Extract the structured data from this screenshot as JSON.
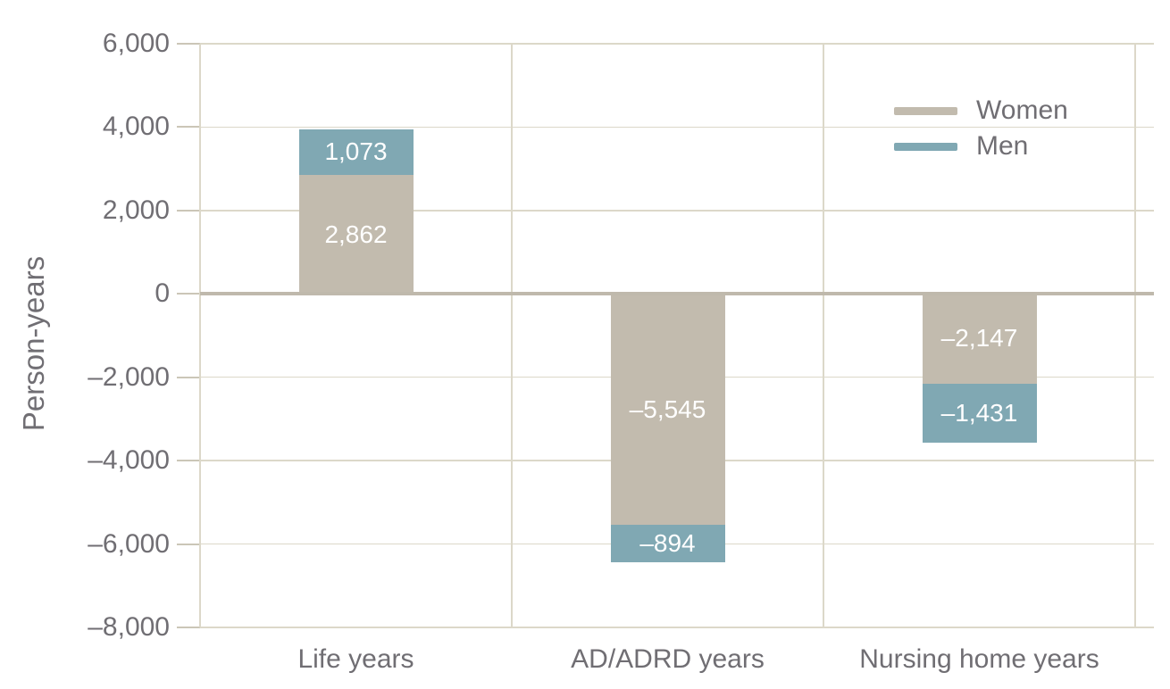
{
  "chart_data": {
    "type": "bar",
    "stacked": true,
    "title": "",
    "xlabel": "",
    "ylabel": "Person-years",
    "categories": [
      "Life years",
      "AD/ADRD years",
      "Nursing home years"
    ],
    "series": [
      {
        "name": "Women",
        "color": "#c2bbae",
        "values": [
          2862,
          -5545,
          -2147
        ],
        "value_labels": [
          "2,862",
          "–5,545",
          "–2,147"
        ]
      },
      {
        "name": "Men",
        "color": "#80a8b3",
        "values": [
          1073,
          -894,
          -1431
        ],
        "value_labels": [
          "1,073",
          "–894",
          "–1,431"
        ]
      }
    ],
    "ylim": [
      -8000,
      6000
    ],
    "yticks": [
      6000,
      4000,
      2000,
      0,
      -2000,
      -4000,
      -6000,
      -8000
    ],
    "ytick_labels": [
      "6,000",
      "4,000",
      "2,000",
      "0",
      "–2,000",
      "–4,000",
      "–6,000",
      "–8,000"
    ],
    "grid": true,
    "legend_position": "top-right",
    "colors": {
      "background": "#ffffff",
      "grid": "#dcd8c9",
      "zero_line": "#bfb9ac",
      "tick": "#cbc6b7",
      "text": "#706e73",
      "value_text": "#ffffff"
    }
  }
}
